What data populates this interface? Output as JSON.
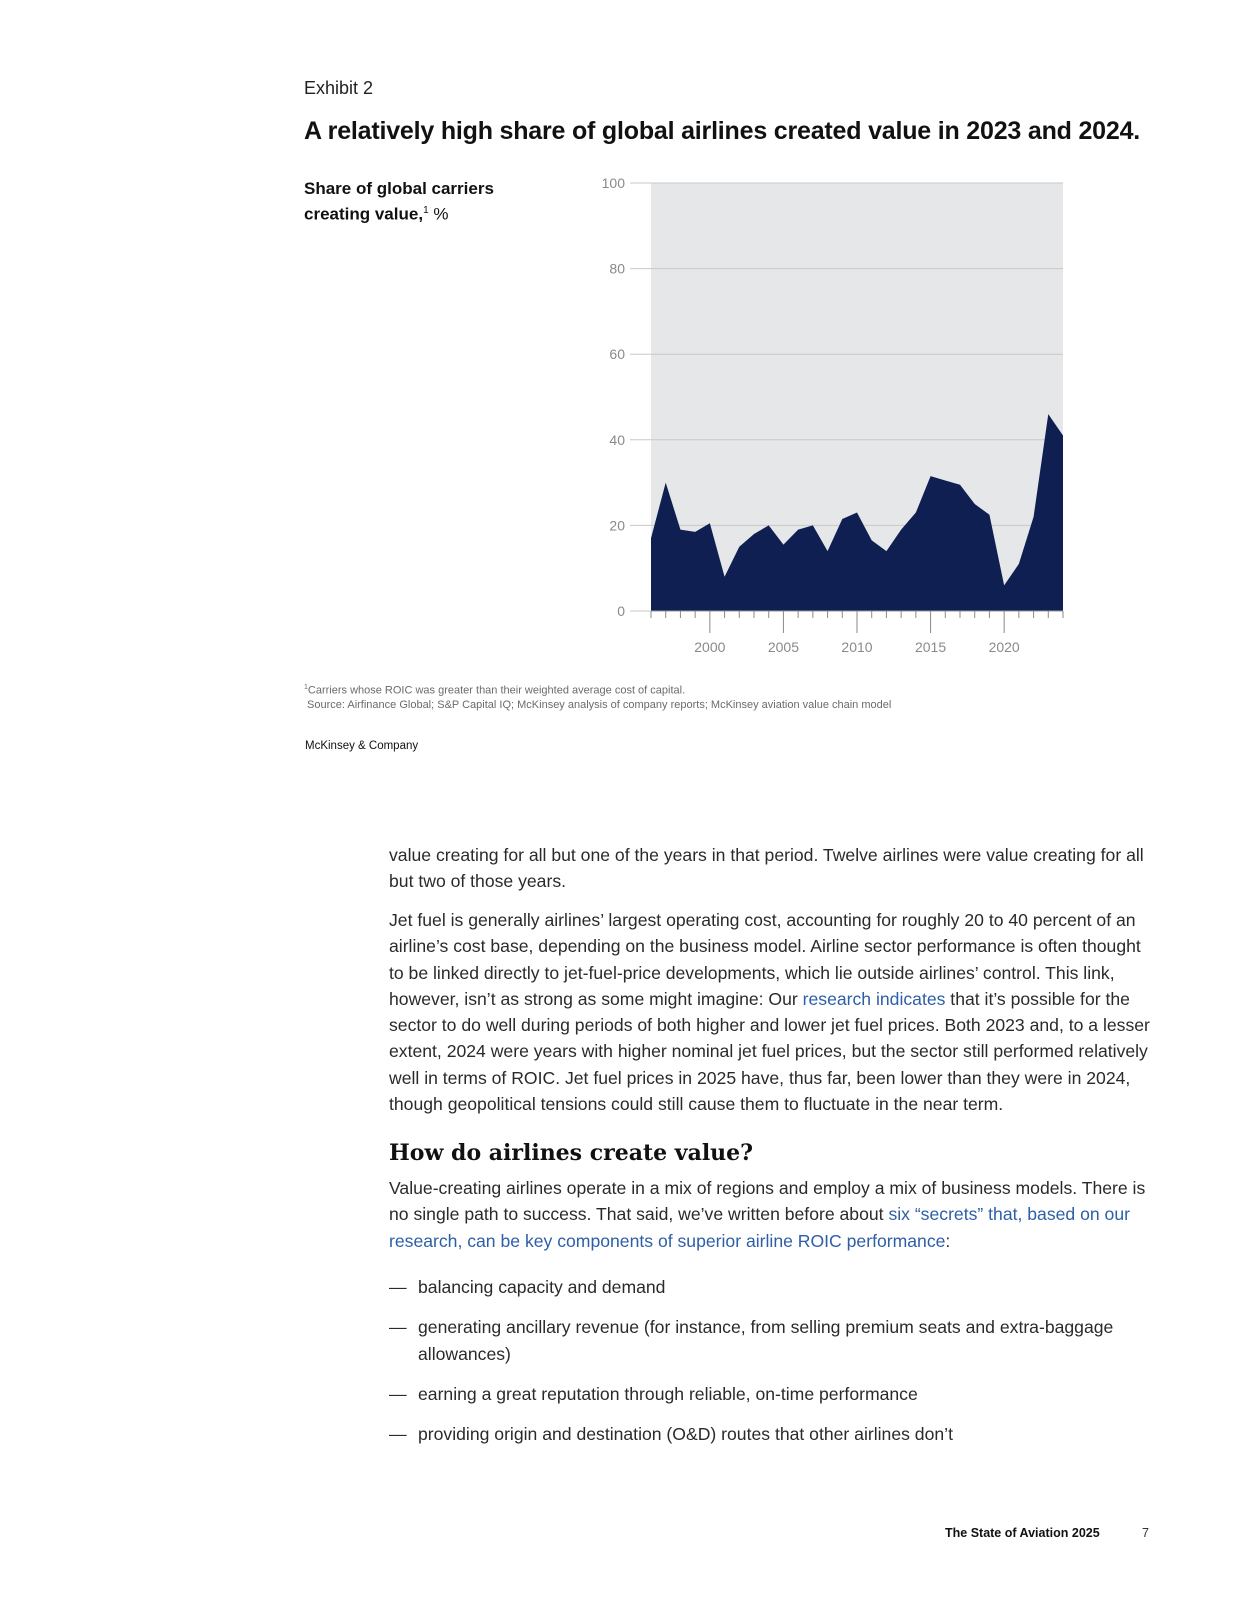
{
  "exhibit": {
    "label": "Exhibit 2",
    "title": "A relatively high share of global airlines created value in 2023 and 2024."
  },
  "chart_data": {
    "type": "area",
    "title": "A relatively high share of global airlines created value in 2023 and 2024.",
    "ylabel_main": "Share of global carriers creating value,",
    "ylabel_sup": "1",
    "ylabel_unit": "%",
    "xlabel": "",
    "ylim": [
      0,
      100
    ],
    "xlim": [
      1996,
      2024
    ],
    "yticks": [
      0,
      20,
      40,
      60,
      80,
      100
    ],
    "xticks": [
      2000,
      2005,
      2010,
      2015,
      2020
    ],
    "grid": true,
    "colors": {
      "area": "#0f1f52",
      "plot_bg": "#e6e7e8",
      "grid": "#c8c8c8",
      "tick_label": "#8a8a8a"
    },
    "series": [
      {
        "x": [
          1996,
          1997,
          1998,
          1999,
          2000,
          2001,
          2002,
          2003,
          2004,
          2005,
          2006,
          2007,
          2008,
          2009,
          2010,
          2011,
          2012,
          2013,
          2014,
          2015,
          2016,
          2017,
          2018,
          2019,
          2020,
          2021,
          2022,
          2023,
          2024
        ],
        "values": [
          17,
          30,
          19,
          18.5,
          20.5,
          8,
          15,
          18,
          20,
          15.5,
          19,
          20,
          14,
          21.5,
          23,
          16.5,
          14,
          19,
          23,
          31.5,
          30.5,
          29.5,
          25,
          22.5,
          6,
          11,
          22,
          46,
          41
        ]
      }
    ]
  },
  "notes": {
    "footnote_sup": "1",
    "footnote": "Carriers whose ROIC was greater than their weighted average cost of capital.",
    "source": "Source: Airfinance Global; S&P Capital IQ; McKinsey analysis of company reports; McKinsey aviation value chain model"
  },
  "brand": "McKinsey & Company",
  "body": {
    "p1": "value creating for all but one of the years in that period. Twelve airlines were value creating for all but two of those years.",
    "p2_a": "Jet fuel is generally airlines’ largest operating cost, accounting for roughly 20 to 40 percent of an airline’s cost base, depending on the business model. Airline sector performance is often thought to be linked directly to jet-fuel-price developments, which lie outside airlines’ control. This link, however, isn’t as strong as some might imagine: Our ",
    "p2_link": "research indicates",
    "p2_b": " that it’s possible for the sector to do well during periods of both higher and lower jet fuel prices. Both 2023 and, to a lesser extent, 2024 were years with higher nominal jet fuel prices, but the sector still performed relatively well in terms of ROIC. Jet fuel prices in 2025 have, thus far, been lower than they were in 2024, though geopolitical tensions could still cause them to fluctuate in the near term.",
    "heading": "How do airlines create value?",
    "p3_a": "Value-creating airlines operate in a mix of regions and employ a mix of business models. There is no single path to success. That said, we’ve written before about ",
    "p3_link": "six “secrets” that, based on our research, can be key components of superior airline ROIC performance",
    "p3_b": ":",
    "bullets": [
      "balancing capacity and demand",
      "generating ancillary revenue (for instance, from selling premium seats and extra-baggage allowances)",
      "earning a great reputation through reliable, on-time performance",
      "providing origin and destination (O&D) routes that other airlines don’t"
    ],
    "dash": "—"
  },
  "footer": {
    "publication": "The State of Aviation 2025",
    "page": "7"
  }
}
